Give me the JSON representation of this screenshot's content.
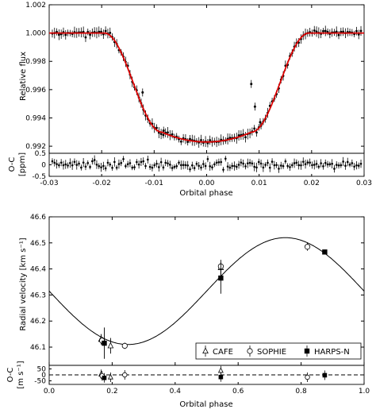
{
  "chart_data": [
    {
      "type": "scatter",
      "panel": "transit light curve",
      "xlabel": "Orbital phase",
      "ylabel": "Relative flux",
      "xlim": [
        -0.03,
        0.03
      ],
      "ylim": [
        0.9915,
        1.002
      ],
      "xticks": [
        "-0.03",
        "-0.02",
        "-0.01",
        "0.00",
        "0.01",
        "0.02",
        "0.03"
      ],
      "yticks": [
        "0.992",
        "0.994",
        "0.996",
        "0.998",
        "1.000",
        "1.002"
      ],
      "model_color": "#dd0000",
      "transit_model": {
        "depth": 0.0077,
        "ingress_start": 0.0195,
        "ingress_end": 0.0085
      },
      "outliers": [
        {
          "x": 0.0085,
          "y": 0.9964
        },
        {
          "x": 0.0092,
          "y": 0.9948
        },
        {
          "x": -0.0122,
          "y": 0.9958
        },
        {
          "x": -0.0082,
          "y": 0.9931
        },
        {
          "x": 0.0102,
          "y": 0.9937
        }
      ],
      "residual_panel": {
        "ylabel_lines": [
          "O-C",
          "[ppm]"
        ],
        "ylim": [
          -0.5,
          0.5
        ],
        "yticks": [
          "0.5",
          "0",
          "-0.5"
        ]
      }
    },
    {
      "type": "scatter",
      "panel": "radial velocity",
      "xlabel": "Orbital phase",
      "ylabel": "Radial velocity [km s⁻¹]",
      "xlim": [
        0.0,
        1.0
      ],
      "ylim": [
        46.03,
        46.6
      ],
      "xticks": [
        "0.0",
        "0.2",
        "0.4",
        "0.6",
        "0.8",
        "1.0"
      ],
      "yticks": [
        "46.1",
        "46.2",
        "46.3",
        "46.4",
        "46.5",
        "46.6"
      ],
      "model": {
        "gamma": 46.315,
        "K": 0.205,
        "phase_zero": 0.0
      },
      "series": [
        {
          "name": "CAFE",
          "marker": "open-triangle",
          "points": [
            {
              "x": 0.165,
              "y": 46.13,
              "err": 0.02
            },
            {
              "x": 0.195,
              "y": 46.105,
              "err": 0.03
            },
            {
              "x": 0.545,
              "y": 46.405,
              "err": 0.03
            }
          ]
        },
        {
          "name": "SOPHIE",
          "marker": "open-circle",
          "points": [
            {
              "x": 0.168,
              "y": 46.125,
              "err": 0.015
            },
            {
              "x": 0.24,
              "y": 46.105,
              "err": 0.012
            },
            {
              "x": 0.545,
              "y": 46.41,
              "err": 0.012
            },
            {
              "x": 0.82,
              "y": 46.485,
              "err": 0.015
            }
          ]
        },
        {
          "name": "HARPS-N",
          "marker": "filled-square",
          "points": [
            {
              "x": 0.175,
              "y": 46.115,
              "err": 0.06
            },
            {
              "x": 0.545,
              "y": 46.365,
              "err": 0.06
            },
            {
              "x": 0.875,
              "y": 46.465,
              "err": 0.006
            }
          ]
        }
      ],
      "legend_position": "lower-right",
      "residual_panel": {
        "ylabel_lines": [
          "O-C",
          "[m s⁻¹]"
        ],
        "ylim": [
          -80,
          80
        ],
        "yticks": [
          "50",
          "0",
          "-50"
        ],
        "residuals": [
          {
            "series": "CAFE",
            "x": 0.165,
            "y": 5
          },
          {
            "series": "CAFE",
            "x": 0.195,
            "y": -20
          },
          {
            "series": "CAFE",
            "x": 0.545,
            "y": 35
          },
          {
            "series": "SOPHIE",
            "x": 0.168,
            "y": -8
          },
          {
            "series": "SOPHIE",
            "x": 0.24,
            "y": 0
          },
          {
            "series": "SOPHIE",
            "x": 0.82,
            "y": -20
          },
          {
            "series": "HARPS-N",
            "x": 0.175,
            "y": -25
          },
          {
            "series": "HARPS-N",
            "x": 0.545,
            "y": -18
          },
          {
            "series": "HARPS-N",
            "x": 0.875,
            "y": -3
          }
        ]
      }
    }
  ]
}
